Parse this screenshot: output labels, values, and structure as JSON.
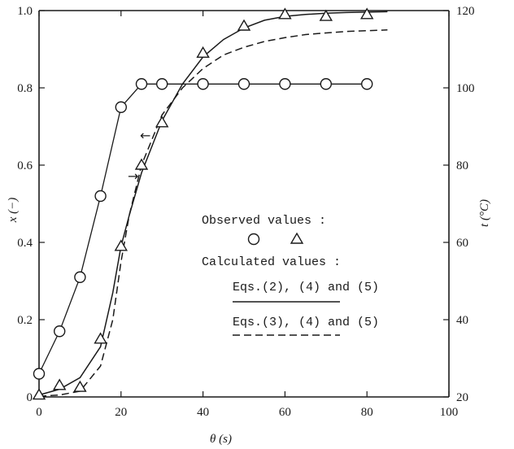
{
  "chart_data": {
    "type": "line",
    "xlabel": "θ (s)",
    "ylabel_left": "x (−)",
    "ylabel_right": "t (°C)",
    "xlim": [
      0,
      100
    ],
    "ylim_left": [
      0,
      1.0
    ],
    "ylim_right": [
      20,
      120
    ],
    "x_ticks": [
      "0",
      "20",
      "40",
      "60",
      "80",
      "100"
    ],
    "y_left_ticks": [
      "0",
      "0.2",
      "0.4",
      "0.6",
      "0.8",
      "1.0"
    ],
    "y_right_ticks": [
      "20",
      "40",
      "60",
      "80",
      "100",
      "120"
    ],
    "grid": false,
    "series": [
      {
        "marker": "circle",
        "axis": "left",
        "x": [
          0,
          5,
          10,
          15,
          20,
          25,
          30,
          40,
          50,
          60,
          70,
          80
        ],
        "values": [
          0.06,
          0.17,
          0.31,
          0.52,
          0.75,
          0.81,
          0.81,
          0.81,
          0.81,
          0.81,
          0.81,
          0.81
        ]
      },
      {
        "marker": "triangle",
        "axis": "right",
        "x": [
          0,
          5,
          10,
          15,
          20,
          25,
          30,
          40,
          50,
          60,
          70,
          80
        ],
        "values": [
          20.5,
          23,
          22.5,
          35,
          59,
          80,
          91,
          109,
          116,
          119,
          118.5,
          119
        ]
      }
    ],
    "calculated": [
      {
        "style": "solid",
        "axis": "right",
        "x": [
          0,
          5,
          10,
          15,
          18,
          20,
          22,
          25,
          30,
          35,
          40,
          45,
          50,
          55,
          60,
          65,
          70,
          75,
          80,
          85
        ],
        "values": [
          20.5,
          22,
          25,
          33,
          47,
          59,
          67,
          78,
          91.5,
          101,
          108,
          112.5,
          115.5,
          117.5,
          118.5,
          119,
          119.3,
          119.5,
          119.6,
          119.7
        ]
      },
      {
        "style": "dashed",
        "axis": "right",
        "x": [
          0,
          5,
          10,
          15,
          18,
          20,
          22,
          25,
          30,
          35,
          40,
          45,
          50,
          55,
          60,
          65,
          70,
          75,
          80,
          85
        ],
        "values": [
          20.2,
          20.5,
          21.5,
          28,
          40,
          55,
          67,
          80,
          93,
          100,
          105,
          108.5,
          110.5,
          112,
          113,
          113.8,
          114.2,
          114.6,
          114.8,
          115
        ]
      }
    ],
    "annotations": {
      "arrow_left": "←",
      "arrow_right": "→"
    },
    "legend": {
      "observed_label": "Observed values :",
      "calculated_label": "Calculated values :",
      "eq1_label": "Eqs.(2), (4) and (5)",
      "eq2_label": "Eqs.(3), (4) and (5)"
    }
  }
}
